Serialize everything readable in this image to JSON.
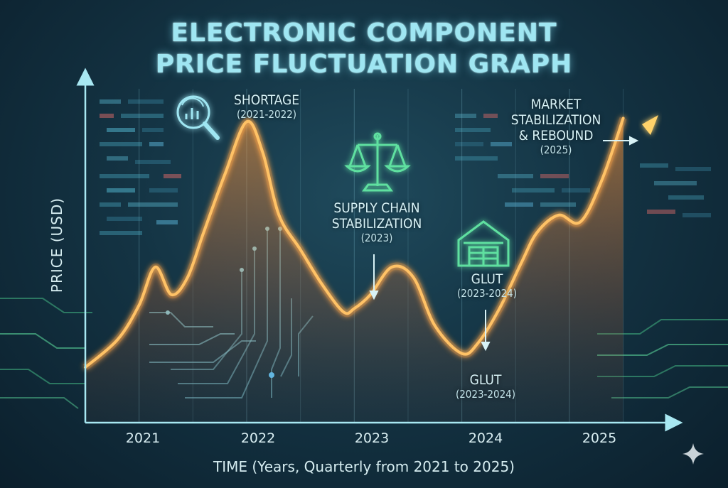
{
  "title_line1": "ELECTRONIC COMPONENT",
  "title_line2": "PRICE FLUCTUATION GRAPH",
  "annotations": {
    "shortage": {
      "title": "SHORTAGE",
      "period": "(2021-2022)"
    },
    "supply_chain": {
      "line1": "SUPPLY CHAIN",
      "line2": "STABILIZATION",
      "period": "(2023)"
    },
    "glut_upper": {
      "title": "GLUT",
      "period": "(2023-2024)"
    },
    "glut_lower": {
      "title": "GLUT",
      "period": "(2023-2024)"
    },
    "market": {
      "line1": "MARKET",
      "line2": "STABILIZATION",
      "line3": "& REBOUND",
      "period": "(2025)"
    }
  },
  "icons": [
    "magnifier-chart-icon",
    "balance-scale-icon",
    "warehouse-icon",
    "sparkle-icon"
  ],
  "colors": {
    "line": "#ffb347",
    "line_glow": "#ff8a2a",
    "axis": "#a8e8f2",
    "title": "#9fe6f2",
    "circuit": "#5fe0a0"
  },
  "chart_data": {
    "type": "area",
    "xlabel": "TIME (Years, Quarterly from 2021 to 2025)",
    "ylabel": "PRICE (USD)",
    "x_ticks": [
      "2021",
      "2022",
      "2023",
      "2024",
      "2025"
    ],
    "x_range": [
      2020.5,
      2025.8
    ],
    "y_range": [
      0,
      100
    ],
    "y_ticks_shown": false,
    "grid": "vertical",
    "series": [
      {
        "x": [
          2020.5,
          2020.8,
          2021.0,
          2021.15,
          2021.3,
          2021.45,
          2021.6,
          2021.8,
          2022.0,
          2022.15,
          2022.3,
          2022.5,
          2022.7,
          2022.9,
          2023.0,
          2023.15,
          2023.35,
          2023.55,
          2023.75,
          2024.0,
          2024.15,
          2024.35,
          2024.55,
          2024.7,
          2024.9,
          2025.1,
          2025.3,
          2025.5
        ],
        "y": [
          16,
          24,
          34,
          45,
          37,
          42,
          55,
          72,
          87,
          78,
          60,
          50,
          40,
          32,
          33,
          37,
          45,
          42,
          28,
          20,
          23,
          33,
          46,
          55,
          60,
          58,
          70,
          88
        ]
      }
    ]
  }
}
